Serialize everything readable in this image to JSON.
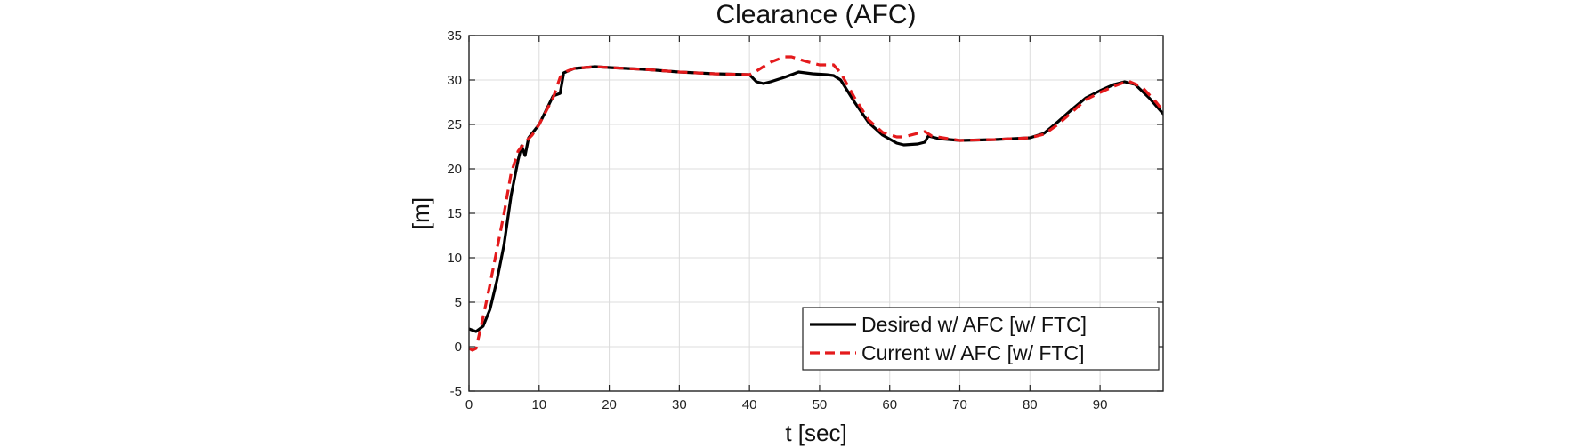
{
  "chart_data": {
    "type": "line",
    "title": "Clearance (AFC)",
    "xlabel": "t [sec]",
    "ylabel": "[m]",
    "xlim": [
      0,
      99
    ],
    "ylim": [
      -5,
      35
    ],
    "xticks": [
      0,
      10,
      20,
      30,
      40,
      50,
      60,
      70,
      80,
      90
    ],
    "yticks": [
      -5,
      0,
      5,
      10,
      15,
      20,
      25,
      30,
      35
    ],
    "grid": true,
    "legend_position": "bottom-right",
    "series": [
      {
        "name": "Desired w/ AFC [w/ FTC]",
        "color": "#000000",
        "dash": "solid",
        "points": [
          [
            0,
            2.0
          ],
          [
            1,
            1.7
          ],
          [
            2,
            2.3
          ],
          [
            3,
            4.2
          ],
          [
            4,
            7.5
          ],
          [
            5,
            11.5
          ],
          [
            6,
            17.0
          ],
          [
            7,
            21.0
          ],
          [
            7.5,
            22.6
          ],
          [
            8,
            21.5
          ],
          [
            8.5,
            23.5
          ],
          [
            10,
            25.0
          ],
          [
            12,
            28.2
          ],
          [
            13,
            28.5
          ],
          [
            13.5,
            30.8
          ],
          [
            15,
            31.3
          ],
          [
            18,
            31.5
          ],
          [
            20,
            31.4
          ],
          [
            25,
            31.2
          ],
          [
            30,
            30.9
          ],
          [
            35,
            30.7
          ],
          [
            40,
            30.6
          ],
          [
            41,
            29.8
          ],
          [
            42,
            29.6
          ],
          [
            43,
            29.8
          ],
          [
            45,
            30.3
          ],
          [
            47,
            30.9
          ],
          [
            49,
            30.7
          ],
          [
            51,
            30.6
          ],
          [
            52,
            30.5
          ],
          [
            53,
            30.0
          ],
          [
            55,
            27.5
          ],
          [
            57,
            25.2
          ],
          [
            59,
            23.8
          ],
          [
            61,
            22.9
          ],
          [
            62,
            22.7
          ],
          [
            64,
            22.8
          ],
          [
            65,
            23.0
          ],
          [
            65.5,
            23.7
          ],
          [
            67,
            23.4
          ],
          [
            70,
            23.2
          ],
          [
            75,
            23.3
          ],
          [
            80,
            23.5
          ],
          [
            82,
            24.0
          ],
          [
            84,
            25.3
          ],
          [
            86,
            26.7
          ],
          [
            88,
            28.0
          ],
          [
            90,
            28.8
          ],
          [
            92,
            29.5
          ],
          [
            93.5,
            29.8
          ],
          [
            95,
            29.5
          ],
          [
            97,
            28.0
          ],
          [
            99,
            26.2
          ]
        ]
      },
      {
        "name": "Current w/ AFC [w/ FTC]",
        "color": "#e41a1c",
        "dash": "dashed",
        "points": [
          [
            0,
            -0.2
          ],
          [
            0.5,
            -0.4
          ],
          [
            1,
            -0.2
          ],
          [
            1.5,
            1.5
          ],
          [
            2,
            3.3
          ],
          [
            3,
            7.0
          ],
          [
            4,
            11.0
          ],
          [
            5,
            15.0
          ],
          [
            6,
            19.5
          ],
          [
            7,
            22.0
          ],
          [
            8,
            23.0
          ],
          [
            9,
            23.8
          ],
          [
            10,
            25.0
          ],
          [
            12,
            28.0
          ],
          [
            13,
            30.3
          ],
          [
            14,
            31.0
          ],
          [
            15,
            31.3
          ],
          [
            18,
            31.5
          ],
          [
            20,
            31.4
          ],
          [
            25,
            31.2
          ],
          [
            30,
            30.9
          ],
          [
            35,
            30.7
          ],
          [
            40,
            30.6
          ],
          [
            41,
            31.0
          ],
          [
            43,
            32.0
          ],
          [
            45,
            32.6
          ],
          [
            46,
            32.6
          ],
          [
            48,
            32.1
          ],
          [
            50,
            31.7
          ],
          [
            52,
            31.7
          ],
          [
            53,
            30.8
          ],
          [
            55,
            28.0
          ],
          [
            57,
            25.5
          ],
          [
            59,
            24.1
          ],
          [
            61,
            23.6
          ],
          [
            62,
            23.6
          ],
          [
            64,
            24.0
          ],
          [
            65,
            24.2
          ],
          [
            66,
            23.7
          ],
          [
            70,
            23.2
          ],
          [
            75,
            23.3
          ],
          [
            80,
            23.5
          ],
          [
            82,
            23.9
          ],
          [
            84,
            25.0
          ],
          [
            86,
            26.4
          ],
          [
            88,
            27.8
          ],
          [
            90,
            28.6
          ],
          [
            92,
            29.3
          ],
          [
            94,
            29.9
          ],
          [
            96,
            29.2
          ],
          [
            98,
            27.5
          ],
          [
            99,
            26.5
          ]
        ]
      }
    ]
  }
}
